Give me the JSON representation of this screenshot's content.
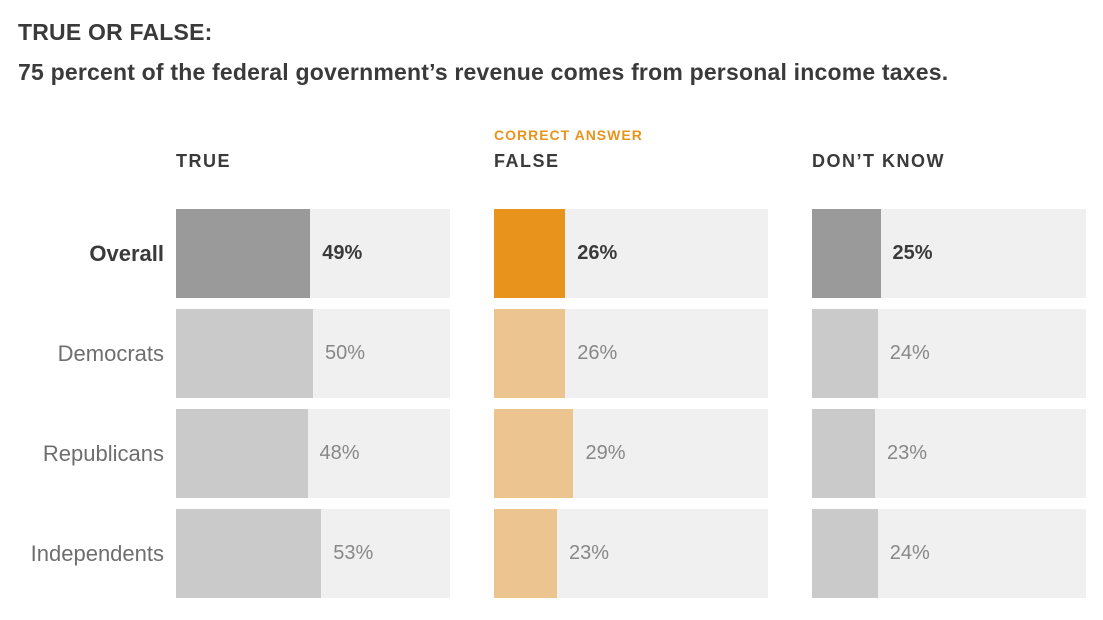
{
  "title": {
    "line1": "TRUE OR FALSE:",
    "line2": "75 percent of the federal government’s revenue comes from personal income taxes."
  },
  "annotation": {
    "correct_answer": "CORRECT ANSWER"
  },
  "colors": {
    "accent_orange": "#e8931c",
    "light_orange": "#ecc490",
    "dark_gray_bar": "#9a9a9a",
    "light_gray_bar": "#cacaca",
    "bar_track": "#f0f0f0",
    "text_dark": "#3a3a3a",
    "label_gray": "#6e6e6e",
    "value_gray": "#878787"
  },
  "chart_data": {
    "type": "bar",
    "title": "TRUE OR FALSE: 75 percent of the federal government’s revenue comes from personal income taxes.",
    "categories": [
      "Overall",
      "Democrats",
      "Republicans",
      "Independents"
    ],
    "series": [
      {
        "name": "TRUE",
        "values": [
          49,
          50,
          48,
          53
        ],
        "labels": [
          "49%",
          "50%",
          "48%",
          "53%"
        ]
      },
      {
        "name": "FALSE",
        "annotation": "CORRECT ANSWER",
        "values": [
          26,
          26,
          29,
          23
        ],
        "labels": [
          "26%",
          "26%",
          "29%",
          "23%"
        ]
      },
      {
        "name": "DON’T KNOW",
        "values": [
          25,
          24,
          23,
          24
        ],
        "labels": [
          "25%",
          "24%",
          "23%",
          "24%"
        ]
      }
    ],
    "xlim": [
      0,
      100
    ],
    "unit": "percent",
    "orientation": "horizontal",
    "grid": false,
    "legend_position": "none",
    "highlight_category": "Overall",
    "highlight_series": "FALSE"
  }
}
